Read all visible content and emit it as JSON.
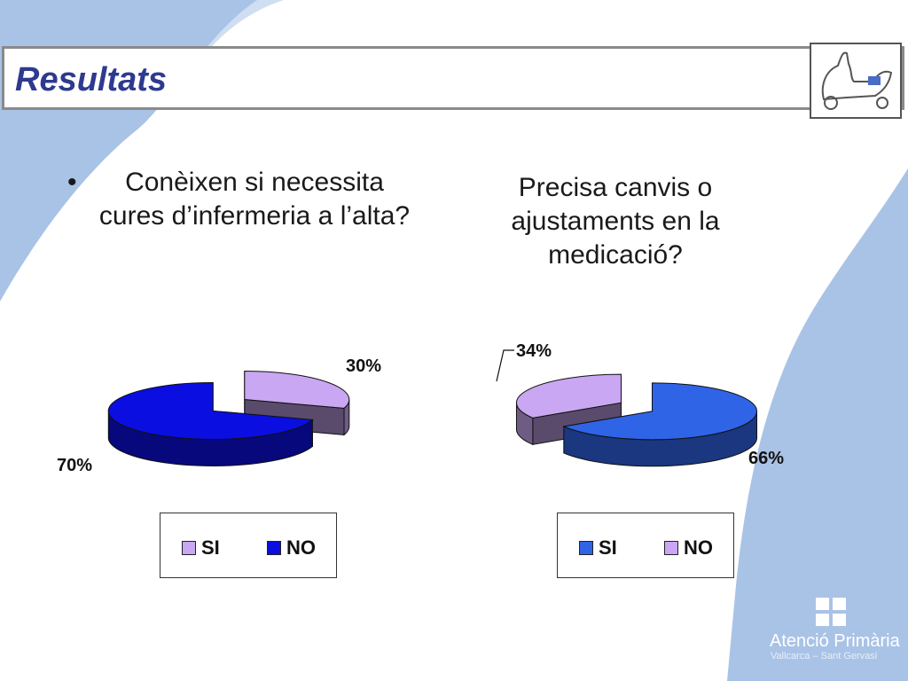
{
  "slide": {
    "title": "Resultats",
    "footer": {
      "brand_name": "Atenció Primària",
      "brand_sub": "Vallcarca – Sant Gervasi"
    }
  },
  "questions": {
    "q1_bullet": "•",
    "q1": "Conèixen  si necessita cures d’infermeria a l’alta?",
    "q2": "Precisa canvis o ajustaments en la medicació?"
  },
  "colors": {
    "background_blue": "#a9c3e6",
    "title": "#2e3a8f",
    "si_chart1": "#c9a7f2",
    "no_chart1": "#0a0ee0",
    "si_chart2": "#2f64e6",
    "no_chart2": "#c9a7f2"
  },
  "chart_data": [
    {
      "type": "pie",
      "categories": [
        "SI",
        "NO"
      ],
      "values": [
        30,
        70
      ],
      "data_labels": [
        "30%",
        "70%"
      ],
      "legend": [
        "SI",
        "NO"
      ],
      "colors": [
        "#c9a7f2",
        "#0a0ee0"
      ]
    },
    {
      "type": "pie",
      "categories": [
        "SI",
        "NO"
      ],
      "values": [
        66,
        34
      ],
      "data_labels": [
        "66%",
        "34%"
      ],
      "legend": [
        "SI",
        "NO"
      ],
      "colors": [
        "#2f64e6",
        "#c9a7f2"
      ]
    }
  ]
}
